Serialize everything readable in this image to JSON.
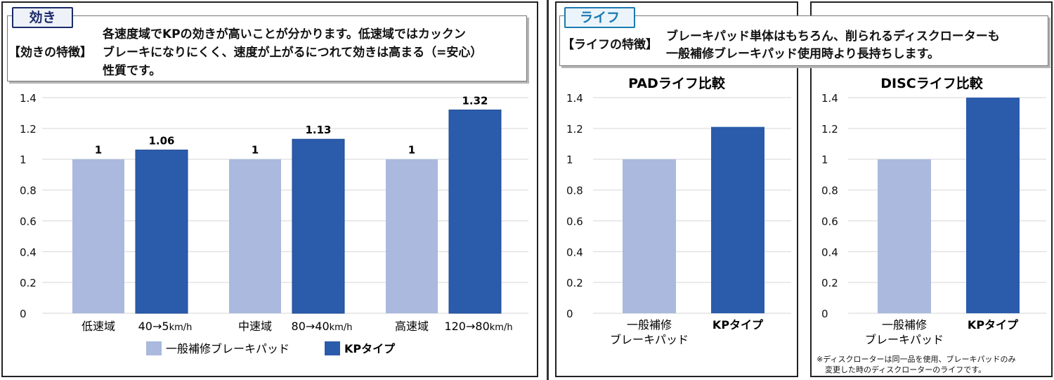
{
  "left": {
    "tag": "効き",
    "heading": "【効きの特徴】",
    "desc_lines": [
      "各速度域でKPの効きが高いことが分かります。低速域ではカックン",
      "ブレーキになりにくく、速度が上がるにつれて効きは高まる（=安心）",
      "性質です。"
    ]
  },
  "right": {
    "tag": "ライフ",
    "heading": "【ライフの特徴】",
    "desc_lines": [
      "ブレーキパッド単体はもちろん、削られるディスクローターも",
      "一般補修ブレーキパッド使用時より長持ちします。"
    ],
    "footnote_lines": [
      "※ディスクローターは同一品を使用、ブレーキパッドのみ",
      "変更した時のディスクローターのライフです。"
    ]
  },
  "colors": {
    "general": "#aab9dd",
    "kp": "#2b5cac"
  },
  "chart_data": [
    {
      "type": "bar",
      "title": "",
      "categories": [
        {
          "area": "低速域",
          "speed": "40→5",
          "unit": "km/h"
        },
        {
          "area": "中速域",
          "speed": "80→40",
          "unit": "km/h"
        },
        {
          "area": "高速域",
          "speed": "120→80",
          "unit": "km/h"
        }
      ],
      "series": [
        {
          "name": "一般補修ブレーキパッド",
          "values": [
            1,
            1,
            1
          ],
          "labels": [
            "1",
            "1",
            "1"
          ]
        },
        {
          "name": "KPタイプ",
          "values": [
            1.06,
            1.13,
            1.32
          ],
          "labels": [
            "1.06",
            "1.13",
            "1.32"
          ]
        }
      ],
      "ylim": [
        0,
        1.4
      ],
      "yticks": [
        "0",
        "0.2",
        "0.4",
        "0.6",
        "0.8",
        "1",
        "1.2",
        "1.4"
      ],
      "legend": "bottom"
    },
    {
      "type": "bar",
      "title": "PADライフ比較",
      "categories": [
        [
          "一般補修",
          "ブレーキパッド"
        ],
        [
          "KPタイプ"
        ]
      ],
      "values": [
        1,
        1.21
      ],
      "ylim": [
        0,
        1.4
      ],
      "yticks": [
        "0",
        "0.2",
        "0.4",
        "0.6",
        "0.8",
        "1",
        "1.2",
        "1.4"
      ]
    },
    {
      "type": "bar",
      "title": "DISCライフ比較",
      "categories": [
        [
          "一般補修",
          "ブレーキパッド"
        ],
        [
          "KPタイプ"
        ]
      ],
      "values": [
        1,
        1.4
      ],
      "ylim": [
        0,
        1.4
      ],
      "yticks": [
        "0",
        "0.2",
        "0.4",
        "0.6",
        "0.8",
        "1",
        "1.2",
        "1.4"
      ]
    }
  ]
}
